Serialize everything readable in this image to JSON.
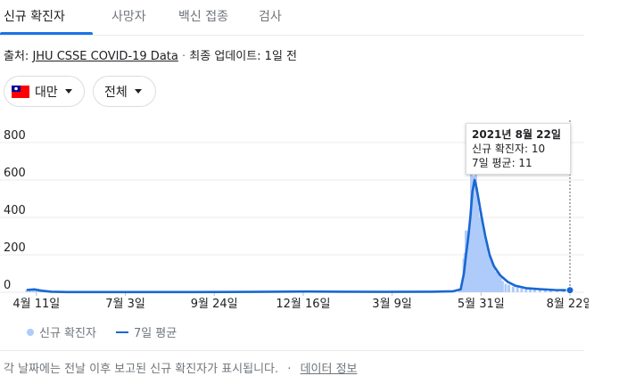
{
  "tabs": [
    {
      "label": "신규 확진자",
      "active": true
    },
    {
      "label": "사망자",
      "active": false
    },
    {
      "label": "백신 접종",
      "active": false
    },
    {
      "label": "검사",
      "active": false
    }
  ],
  "source": {
    "prefix": "출처: ",
    "link": "JHU CSSE COVID-19 Data",
    "separator": " · ",
    "updated": "최종 업데이트: 1일 전"
  },
  "filters": {
    "region": {
      "label": "대만",
      "icon": "taiwan-flag-icon"
    },
    "scope": {
      "label": "전체"
    }
  },
  "tooltip": {
    "date": "2021년 8월 22일",
    "cases": "신규 확진자: 10",
    "avg": "7일 평균: 11"
  },
  "legend": {
    "cases": "신규 확진자",
    "avg": "7일 평균"
  },
  "footer": {
    "note": "각 날짜에는 전날 이후 보고된 신규 확진자가 표시됩니다.",
    "separator": "·",
    "info_link": "데이터 정보"
  },
  "colors": {
    "bars": "#aecbfa",
    "line": "#1967d2",
    "accent": "#1a73e8"
  },
  "chart_data": {
    "type": "bar",
    "title": "",
    "xlabel": "",
    "ylabel": "",
    "ylim": [
      0,
      800
    ],
    "yticks": [
      0,
      200,
      400,
      600,
      800
    ],
    "x_tick_labels": [
      "4월 11일",
      "7월 3일",
      "9월 24일",
      "12월 16일",
      "3월 9일",
      "5월 31일",
      "8월 22일"
    ],
    "grid": true,
    "legend_position": "bottom-left",
    "series": [
      {
        "name": "신규 확진자",
        "type": "bar",
        "points": [
          [
            "2020-04-02",
            15
          ],
          [
            "2020-04-05",
            18
          ],
          [
            "2020-04-08",
            12
          ],
          [
            "2020-04-11",
            10
          ],
          [
            "2020-04-14",
            5
          ],
          [
            "2020-04-17",
            6
          ],
          [
            "2020-04-20",
            3
          ],
          [
            "2020-04-25",
            2
          ],
          [
            "2020-05-01",
            1
          ],
          [
            "2020-05-15",
            1
          ],
          [
            "2020-06-20",
            1
          ],
          [
            "2020-08-01",
            2
          ],
          [
            "2020-09-15",
            1
          ],
          [
            "2020-11-01",
            3
          ],
          [
            "2020-12-01",
            4
          ],
          [
            "2020-12-20",
            6
          ],
          [
            "2021-01-10",
            5
          ],
          [
            "2021-02-01",
            3
          ],
          [
            "2021-03-01",
            2
          ],
          [
            "2021-04-01",
            3
          ],
          [
            "2021-05-01",
            5
          ],
          [
            "2021-05-11",
            10
          ],
          [
            "2021-05-13",
            20
          ],
          [
            "2021-05-14",
            60
          ],
          [
            "2021-05-15",
            180
          ],
          [
            "2021-05-16",
            210
          ],
          [
            "2021-05-17",
            330
          ],
          [
            "2021-05-18",
            250
          ],
          [
            "2021-05-19",
            300
          ],
          [
            "2021-05-20",
            340
          ],
          [
            "2021-05-21",
            320
          ],
          [
            "2021-05-22",
            720
          ],
          [
            "2021-05-23",
            350
          ],
          [
            "2021-05-24",
            620
          ],
          [
            "2021-05-25",
            540
          ],
          [
            "2021-05-26",
            630
          ],
          [
            "2021-05-27",
            560
          ],
          [
            "2021-05-28",
            450
          ],
          [
            "2021-05-29",
            320
          ],
          [
            "2021-05-30",
            400
          ],
          [
            "2021-05-31",
            430
          ],
          [
            "2021-06-01",
            360
          ],
          [
            "2021-06-02",
            330
          ],
          [
            "2021-06-03",
            280
          ],
          [
            "2021-06-04",
            300
          ],
          [
            "2021-06-05",
            250
          ],
          [
            "2021-06-06",
            200
          ],
          [
            "2021-06-07",
            190
          ],
          [
            "2021-06-08",
            180
          ],
          [
            "2021-06-09",
            170
          ],
          [
            "2021-06-10",
            150
          ],
          [
            "2021-06-12",
            130
          ],
          [
            "2021-06-14",
            110
          ],
          [
            "2021-06-16",
            100
          ],
          [
            "2021-06-18",
            80
          ],
          [
            "2021-06-20",
            60
          ],
          [
            "2021-06-23",
            45
          ],
          [
            "2021-06-26",
            40
          ],
          [
            "2021-06-30",
            30
          ],
          [
            "2021-07-04",
            25
          ],
          [
            "2021-07-08",
            20
          ],
          [
            "2021-07-12",
            25
          ],
          [
            "2021-07-16",
            18
          ],
          [
            "2021-07-20",
            15
          ],
          [
            "2021-07-25",
            12
          ],
          [
            "2021-07-30",
            14
          ],
          [
            "2021-08-04",
            10
          ],
          [
            "2021-08-10",
            12
          ],
          [
            "2021-08-16",
            9
          ],
          [
            "2021-08-20",
            8
          ],
          [
            "2021-08-22",
            10
          ]
        ]
      },
      {
        "name": "7일 평균",
        "type": "line",
        "points": [
          [
            "2020-04-02",
            12
          ],
          [
            "2020-04-09",
            15
          ],
          [
            "2020-04-16",
            8
          ],
          [
            "2020-04-25",
            3
          ],
          [
            "2020-05-10",
            1
          ],
          [
            "2020-07-01",
            1
          ],
          [
            "2020-09-01",
            1
          ],
          [
            "2020-11-01",
            2
          ],
          [
            "2020-12-20",
            4
          ],
          [
            "2021-01-20",
            3
          ],
          [
            "2021-03-01",
            2
          ],
          [
            "2021-04-15",
            3
          ],
          [
            "2021-05-05",
            5
          ],
          [
            "2021-05-12",
            15
          ],
          [
            "2021-05-15",
            100
          ],
          [
            "2021-05-17",
            200
          ],
          [
            "2021-05-19",
            290
          ],
          [
            "2021-05-21",
            400
          ],
          [
            "2021-05-23",
            540
          ],
          [
            "2021-05-25",
            600
          ],
          [
            "2021-05-26",
            580
          ],
          [
            "2021-05-28",
            520
          ],
          [
            "2021-05-31",
            420
          ],
          [
            "2021-06-04",
            300
          ],
          [
            "2021-06-08",
            200
          ],
          [
            "2021-06-12",
            140
          ],
          [
            "2021-06-18",
            90
          ],
          [
            "2021-06-25",
            55
          ],
          [
            "2021-07-02",
            35
          ],
          [
            "2021-07-12",
            22
          ],
          [
            "2021-07-25",
            16
          ],
          [
            "2021-08-08",
            12
          ],
          [
            "2021-08-22",
            11
          ]
        ]
      }
    ],
    "highlight": {
      "date": "2021-08-22",
      "cases": 10,
      "avg": 11
    }
  }
}
